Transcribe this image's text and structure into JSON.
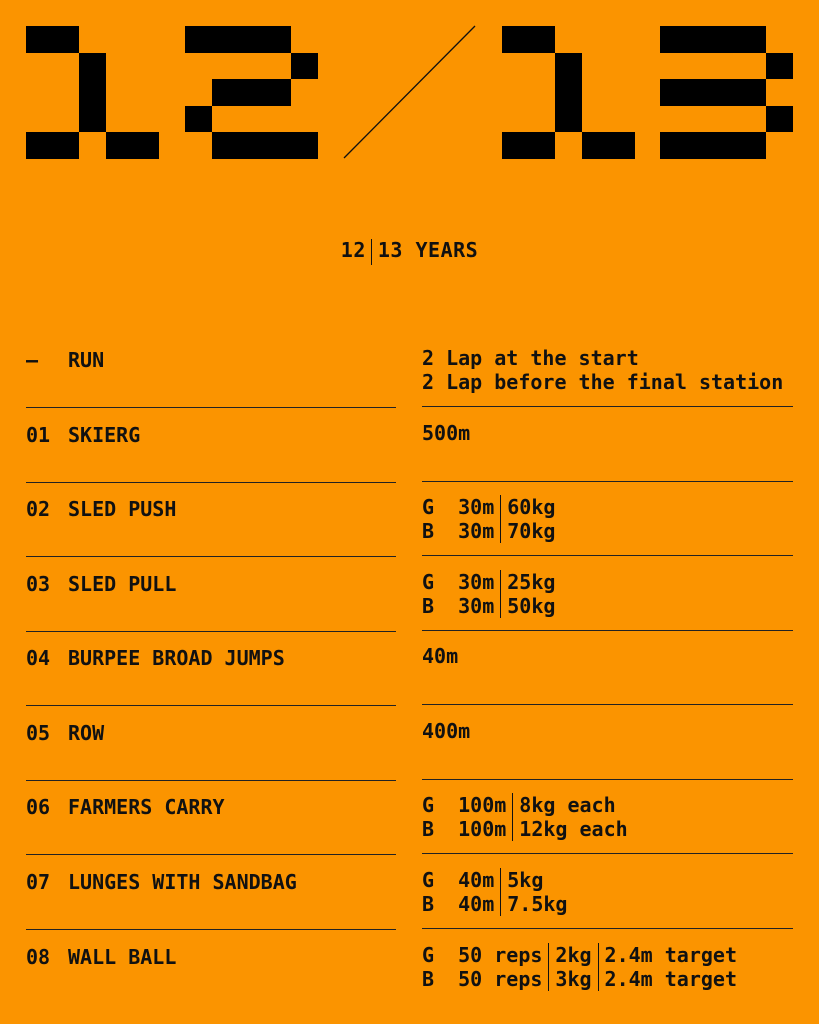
{
  "header": {
    "big_left": "12",
    "big_right": "13",
    "subtitle_a": "12",
    "subtitle_b": "13 YEARS"
  },
  "colors": {
    "background": "#FB9400",
    "ink": "#000000"
  },
  "events": [
    {
      "num": "—",
      "name": "RUN",
      "lines": [
        [
          "2 Lap at the start"
        ],
        [
          "2 Lap before the final station"
        ]
      ]
    },
    {
      "num": "01",
      "name": "SKIERG",
      "lines": [
        [
          "500m"
        ]
      ]
    },
    {
      "num": "02",
      "name": "SLED PUSH",
      "lines": [
        [
          "G  30m",
          "60kg"
        ],
        [
          "B  30m",
          "70kg"
        ]
      ]
    },
    {
      "num": "03",
      "name": "SLED PULL",
      "lines": [
        [
          "G  30m",
          "25kg"
        ],
        [
          "B  30m",
          "50kg"
        ]
      ]
    },
    {
      "num": "04",
      "name": "BURPEE BROAD JUMPS",
      "lines": [
        [
          "40m"
        ]
      ]
    },
    {
      "num": "05",
      "name": "ROW",
      "lines": [
        [
          "400m"
        ]
      ]
    },
    {
      "num": "06",
      "name": "FARMERS CARRY",
      "lines": [
        [
          "G  100m",
          "8kg each"
        ],
        [
          "B  100m",
          "12kg each"
        ]
      ]
    },
    {
      "num": "07",
      "name": "LUNGES WITH SANDBAG",
      "lines": [
        [
          "G  40m",
          "5kg"
        ],
        [
          "B  40m",
          "7.5kg"
        ]
      ]
    },
    {
      "num": "08",
      "name": "WALL BALL",
      "lines": [
        [
          "G  50 reps",
          "2kg",
          "2.4m target"
        ],
        [
          "B  50 reps",
          "3kg",
          "2.4m target"
        ]
      ]
    }
  ]
}
